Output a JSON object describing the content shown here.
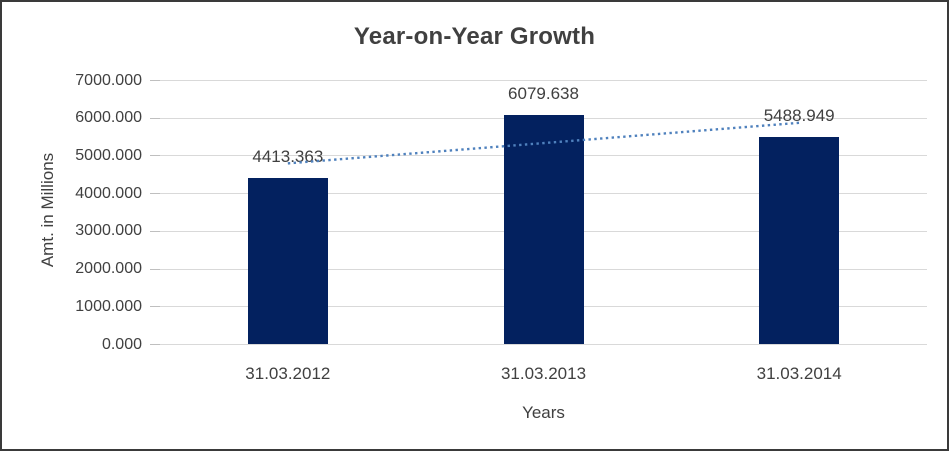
{
  "chart_data": {
    "type": "bar",
    "title": "Year-on-Year Growth",
    "xlabel": "Years",
    "ylabel": "Amt. in Millions",
    "categories": [
      "31.03.2012",
      "31.03.2013",
      "31.03.2014"
    ],
    "values": [
      4413.363,
      6079.638,
      5488.949
    ],
    "data_labels": [
      "4413.363",
      "6079.638",
      "5488.949"
    ],
    "ylim": [
      0,
      7000
    ],
    "ytick_step": 1000,
    "ytick_labels": [
      "0.000",
      "1000.000",
      "2000.000",
      "3000.000",
      "4000.000",
      "5000.000",
      "6000.000",
      "7000.000"
    ],
    "grid": true,
    "legend": "none",
    "colors": {
      "bar": "#03215F",
      "trendline": "#4F81BD",
      "gridline": "#D9D9D9",
      "tick": "#BFBFBF",
      "text": "#404040"
    },
    "trendline": {
      "type": "linear",
      "style": "dotted"
    }
  }
}
